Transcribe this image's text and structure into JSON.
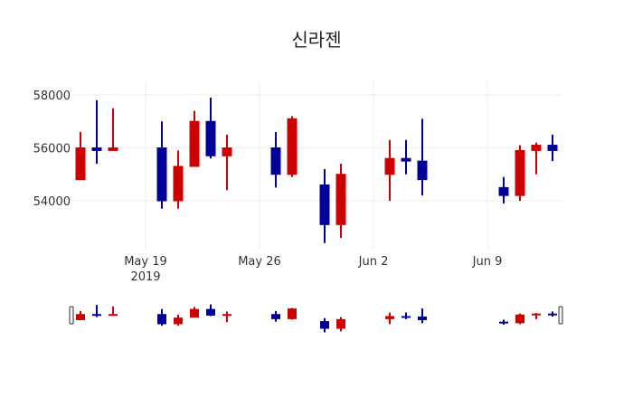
{
  "title": "신라젠",
  "colors": {
    "increasing": "#cc0000",
    "decreasing": "#000099",
    "grid": "#eeeeee"
  },
  "chart_data": {
    "type": "candlestick",
    "title": "신라젠",
    "xlabel": "",
    "ylabel": "",
    "ylim": [
      52300,
      58000
    ],
    "yticks": [
      54000,
      56000,
      58000
    ],
    "xticks": [
      {
        "label": "May 19",
        "sublabel": "2019",
        "date": "2019-05-19"
      },
      {
        "label": "May 26",
        "date": "2019-05-26"
      },
      {
        "label": "Jun 2",
        "date": "2019-06-02"
      },
      {
        "label": "Jun 9",
        "date": "2019-06-09"
      }
    ],
    "grid": true,
    "rangeslider": true,
    "candles": [
      {
        "date": "2019-05-15",
        "open": 54800,
        "high": 56600,
        "low": 54800,
        "close": 56000
      },
      {
        "date": "2019-05-16",
        "open": 56000,
        "high": 57800,
        "low": 55400,
        "close": 55900
      },
      {
        "date": "2019-05-17",
        "open": 55900,
        "high": 57500,
        "low": 55900,
        "close": 56000
      },
      {
        "date": "2019-05-20",
        "open": 56000,
        "high": 57000,
        "low": 53700,
        "close": 54000
      },
      {
        "date": "2019-05-21",
        "open": 54000,
        "high": 55900,
        "low": 53700,
        "close": 55300
      },
      {
        "date": "2019-05-22",
        "open": 55300,
        "high": 57400,
        "low": 55300,
        "close": 57000
      },
      {
        "date": "2019-05-23",
        "open": 57000,
        "high": 57900,
        "low": 55600,
        "close": 55700
      },
      {
        "date": "2019-05-24",
        "open": 55700,
        "high": 56500,
        "low": 54400,
        "close": 56000
      },
      {
        "date": "2019-05-27",
        "open": 56000,
        "high": 56600,
        "low": 54500,
        "close": 55000
      },
      {
        "date": "2019-05-28",
        "open": 55000,
        "high": 57200,
        "low": 54900,
        "close": 57100
      },
      {
        "date": "2019-05-30",
        "open": 54600,
        "high": 55200,
        "low": 52400,
        "close": 53100
      },
      {
        "date": "2019-05-31",
        "open": 53100,
        "high": 55400,
        "low": 52600,
        "close": 55000
      },
      {
        "date": "2019-06-03",
        "open": 55000,
        "high": 56300,
        "low": 54000,
        "close": 55600
      },
      {
        "date": "2019-06-04",
        "open": 55600,
        "high": 56300,
        "low": 55000,
        "close": 55500
      },
      {
        "date": "2019-06-05",
        "open": 55500,
        "high": 57100,
        "low": 54200,
        "close": 54800
      },
      {
        "date": "2019-06-10",
        "open": 54500,
        "high": 54900,
        "low": 53900,
        "close": 54200
      },
      {
        "date": "2019-06-11",
        "open": 54200,
        "high": 56100,
        "low": 54000,
        "close": 55900
      },
      {
        "date": "2019-06-12",
        "open": 55900,
        "high": 56200,
        "low": 55000,
        "close": 56100
      },
      {
        "date": "2019-06-13",
        "open": 56100,
        "high": 56500,
        "low": 55500,
        "close": 55900
      }
    ]
  }
}
